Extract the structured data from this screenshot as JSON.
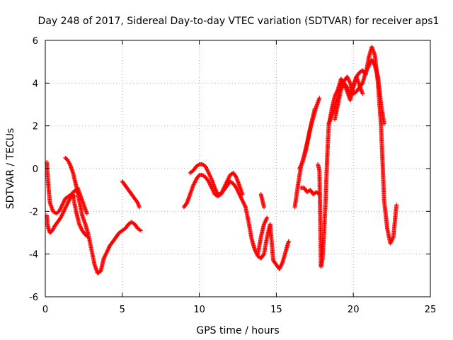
{
  "chart_data": {
    "type": "scatter",
    "title": "Day 248 of 2017, Sidereal Day-to-day VTEC variation (SDTVAR) for receiver aps1",
    "xlabel": "GPS time / hours",
    "ylabel": "SDTVAR / TECUs",
    "xlim": [
      0,
      25
    ],
    "ylim": [
      -6,
      6
    ],
    "xticks": [
      0,
      5,
      10,
      15,
      20,
      25
    ],
    "yticks": [
      -6,
      -4,
      -2,
      0,
      2,
      4,
      6
    ],
    "grid": true,
    "marker": "plus",
    "color": "#ff0000",
    "series": [
      {
        "name": "seg1a",
        "x": [
          0.1,
          0.2,
          0.3,
          0.5,
          0.7,
          0.9,
          1.1,
          1.3,
          1.5,
          1.7,
          1.9
        ],
        "y": [
          0.3,
          -0.8,
          -1.6,
          -2.0,
          -2.1,
          -2.0,
          -1.7,
          -1.4,
          -1.3,
          -1.2,
          -1.3
        ]
      },
      {
        "name": "seg1b",
        "x": [
          0.1,
          0.15,
          0.2,
          0.3,
          0.4,
          0.5,
          0.6,
          0.8,
          1.0,
          1.2,
          1.4,
          1.6,
          1.8,
          2.0,
          2.1
        ],
        "y": [
          -2.2,
          -2.6,
          -2.8,
          -3.0,
          -2.95,
          -2.85,
          -2.7,
          -2.5,
          -2.3,
          -2.0,
          -1.7,
          -1.4,
          -1.1,
          -1.0,
          -1.1
        ]
      },
      {
        "name": "seg1c",
        "x": [
          1.3,
          1.45,
          1.6,
          1.8,
          2.0,
          2.2,
          2.4,
          2.6,
          2.8,
          3.0,
          3.2,
          3.4,
          3.6,
          3.8
        ],
        "y": [
          0.5,
          0.4,
          0.2,
          -0.2,
          -0.8,
          -1.5,
          -2.2,
          -2.6,
          -3.1,
          -3.8,
          -4.5,
          -4.9,
          -4.8,
          -4.2
        ]
      },
      {
        "name": "seg1d",
        "x": [
          1.8,
          2.0,
          2.2,
          2.4,
          2.6,
          2.8
        ],
        "y": [
          -1.3,
          -2.0,
          -2.6,
          -2.9,
          -3.1,
          -3.2
        ]
      },
      {
        "name": "seg1e",
        "x": [
          2.1,
          2.3,
          2.5,
          2.7
        ],
        "y": [
          -0.9,
          -1.3,
          -1.7,
          -2.1
        ]
      },
      {
        "name": "seg1f",
        "x": [
          3.8,
          4.0,
          4.2,
          4.4,
          4.6,
          4.8,
          5.0
        ],
        "y": [
          -4.2,
          -3.9,
          -3.6,
          -3.4,
          -3.2,
          -3.0,
          -2.9
        ]
      },
      {
        "name": "seg1g",
        "x": [
          5.0,
          5.2,
          5.4,
          5.6,
          5.8,
          6.0,
          6.2
        ],
        "y": [
          -2.9,
          -2.8,
          -2.6,
          -2.5,
          -2.6,
          -2.8,
          -2.9
        ]
      },
      {
        "name": "seg1h",
        "x": [
          5.0,
          5.2,
          5.4,
          5.6,
          5.8,
          6.0,
          6.1
        ],
        "y": [
          -0.6,
          -0.8,
          -1.0,
          -1.2,
          -1.4,
          -1.6,
          -1.8
        ]
      },
      {
        "name": "seg2a",
        "x": [
          9.0,
          9.2,
          9.4,
          9.6,
          9.8,
          10.0,
          10.2,
          10.4,
          10.6,
          10.8,
          11.0,
          11.2,
          11.4,
          11.6,
          11.8,
          12.0,
          12.2,
          12.4,
          12.6,
          12.8,
          13.0
        ],
        "y": [
          -1.8,
          -1.6,
          -1.2,
          -0.8,
          -0.5,
          -0.3,
          -0.3,
          -0.4,
          -0.6,
          -0.9,
          -1.2,
          -1.3,
          -1.2,
          -1.0,
          -0.8,
          -0.6,
          -0.7,
          -0.9,
          -1.2,
          -1.5,
          -1.8
        ]
      },
      {
        "name": "seg2b",
        "x": [
          9.4,
          9.6,
          9.8,
          10.0,
          10.2,
          10.4,
          10.6,
          10.8,
          11.0,
          11.2,
          11.4,
          11.6,
          11.8,
          12.0,
          12.2,
          12.4,
          12.6,
          12.8
        ],
        "y": [
          -0.2,
          -0.1,
          0.1,
          0.2,
          0.2,
          0.1,
          -0.2,
          -0.5,
          -0.9,
          -1.2,
          -1.2,
          -0.9,
          -0.6,
          -0.3,
          -0.2,
          -0.4,
          -0.8,
          -1.2
        ]
      },
      {
        "name": "seg2c",
        "x": [
          13.0,
          13.2,
          13.4,
          13.6,
          13.8,
          14.0,
          14.2,
          14.4,
          14.6,
          14.8,
          15.0,
          15.2,
          15.4,
          15.6,
          15.8
        ],
        "y": [
          -1.8,
          -2.5,
          -3.3,
          -3.8,
          -4.1,
          -4.2,
          -4.0,
          -3.2,
          -2.6,
          -4.3,
          -4.5,
          -4.7,
          -4.4,
          -3.9,
          -3.4
        ]
      },
      {
        "name": "seg2d",
        "x": [
          13.8,
          14.0,
          14.2,
          14.4
        ],
        "y": [
          -4.0,
          -3.2,
          -2.6,
          -2.3
        ]
      },
      {
        "name": "seg2e",
        "x": [
          14.0,
          14.1,
          14.2
        ],
        "y": [
          -1.2,
          -1.5,
          -1.8
        ]
      },
      {
        "name": "seg3a",
        "x": [
          16.2,
          16.4,
          16.6,
          16.8,
          17.0,
          17.2,
          17.4,
          17.6,
          17.8
        ],
        "y": [
          -1.8,
          -0.8,
          0.1,
          0.6,
          1.2,
          1.9,
          2.4,
          2.9,
          3.3
        ]
      },
      {
        "name": "seg3b",
        "x": [
          16.5,
          16.7,
          16.9,
          17.1,
          17.3,
          17.5
        ],
        "y": [
          0.0,
          0.3,
          0.8,
          1.5,
          2.2,
          2.8
        ]
      },
      {
        "name": "seg3c",
        "x": [
          16.6,
          16.8,
          17.0,
          17.2,
          17.4,
          17.6,
          17.8
        ],
        "y": [
          -0.9,
          -0.9,
          -1.1,
          -1.0,
          -1.2,
          -1.1,
          -1.2
        ]
      },
      {
        "name": "seg3d",
        "x": [
          17.7,
          17.8,
          17.9,
          18.0,
          18.1,
          18.2,
          18.3,
          18.4,
          18.6,
          18.8,
          19.0,
          19.2,
          19.4,
          19.6,
          19.8,
          20.0,
          20.2,
          20.4,
          20.6,
          20.8,
          21.0,
          21.2,
          21.4,
          21.6,
          21.8,
          22.0,
          22.2,
          22.4,
          22.6,
          22.8
        ],
        "y": [
          0.2,
          -0.1,
          -4.6,
          -4.2,
          -3.0,
          -1.5,
          0.5,
          2.0,
          2.8,
          3.4,
          3.7,
          4.2,
          4.0,
          3.6,
          3.2,
          3.8,
          4.3,
          4.5,
          4.6,
          4.4,
          5.2,
          5.7,
          5.3,
          4.0,
          2.0,
          -1.5,
          -2.8,
          -3.5,
          -3.2,
          -1.7
        ]
      },
      {
        "name": "seg3e",
        "x": [
          18.4,
          18.6,
          18.8,
          19.0,
          19.2,
          19.4,
          19.6,
          19.8,
          20.0,
          20.2,
          20.4,
          20.6,
          20.8,
          21.0,
          21.2,
          21.4,
          21.6,
          21.8,
          22.0
        ],
        "y": [
          2.1,
          2.5,
          2.9,
          3.4,
          3.9,
          4.1,
          4.3,
          4.0,
          3.5,
          3.6,
          3.8,
          4.0,
          4.5,
          4.8,
          5.1,
          4.8,
          4.3,
          3.0,
          2.1
        ]
      },
      {
        "name": "seg3f",
        "x": [
          18.8,
          19.0,
          19.2,
          19.4,
          19.6,
          19.8,
          20.0,
          20.2,
          20.4,
          20.6
        ],
        "y": [
          2.3,
          3.0,
          3.7,
          4.0,
          3.8,
          3.5,
          3.9,
          4.3,
          3.9,
          3.5
        ]
      }
    ]
  }
}
